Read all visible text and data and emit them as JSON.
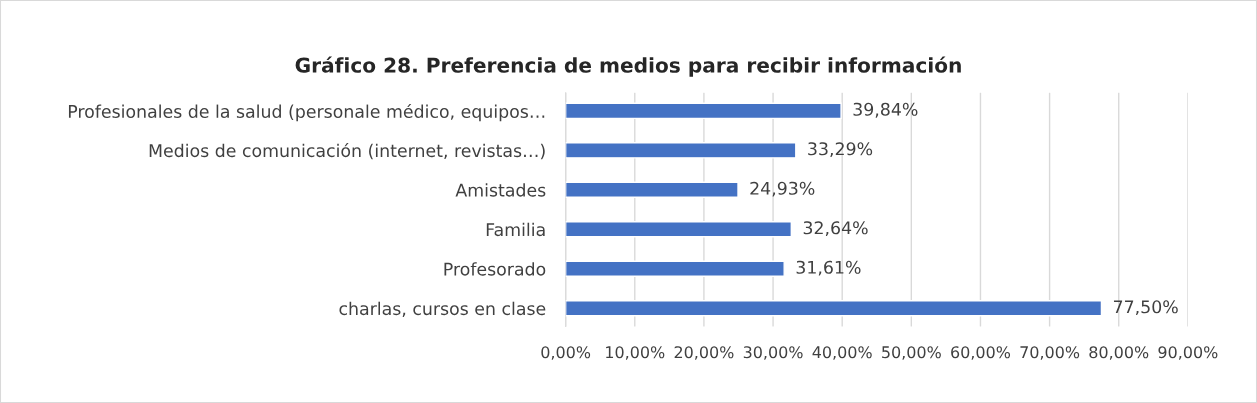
{
  "chart_data": {
    "type": "bar",
    "orientation": "horizontal",
    "title": "Gráfico 28. Preferencia de medios para recibir información",
    "categories": [
      "Profesionales de la salud (personale médico, equipos…",
      "Medios de comunicación (internet, revistas…)",
      "Amistades",
      "Familia",
      "Profesorado",
      "charlas, cursos en clase"
    ],
    "values": [
      39.84,
      33.29,
      24.93,
      32.64,
      31.61,
      77.5
    ],
    "value_labels": [
      "39,84%",
      "33,29%",
      "24,93%",
      "32,64%",
      "31,61%",
      "77,50%"
    ],
    "color": "#4472c4",
    "xlim": [
      0,
      90
    ],
    "xticks": [
      {
        "value": 0,
        "label": "0,00%"
      },
      {
        "value": 10,
        "label": "10,00%"
      },
      {
        "value": 20,
        "label": "20,00%"
      },
      {
        "value": 30,
        "label": "30,00%"
      },
      {
        "value": 40,
        "label": "40,00%"
      },
      {
        "value": 50,
        "label": "50,00%"
      },
      {
        "value": 60,
        "label": "60,00%"
      },
      {
        "value": 70,
        "label": "70,00%"
      },
      {
        "value": 80,
        "label": "80,00%"
      },
      {
        "value": 90,
        "label": "90,00%"
      }
    ],
    "grid": "x"
  }
}
